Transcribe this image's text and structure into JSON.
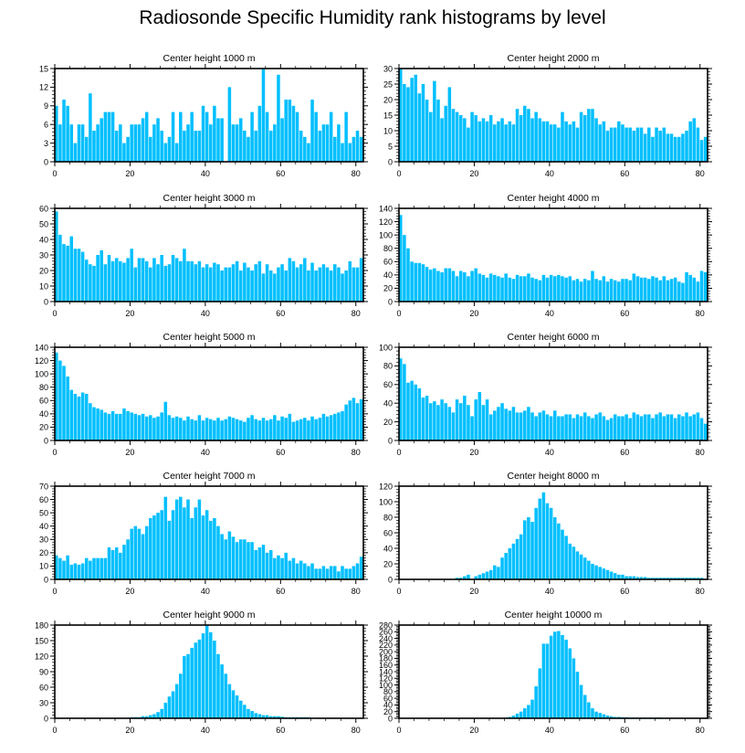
{
  "figure": {
    "title": "Radiosonde Specific Humidity rank histograms by level",
    "bar_color": "#00bfff"
  },
  "chart_data": [
    {
      "type": "bar",
      "title": "Center height 1000 m",
      "xlim": [
        0,
        82
      ],
      "ylim": [
        0,
        15
      ],
      "xticks": [
        0,
        20,
        40,
        60,
        80
      ],
      "yticks": [
        0,
        3,
        6,
        9,
        12,
        15
      ],
      "values": [
        9,
        6,
        10,
        9,
        6,
        3,
        6,
        6,
        4,
        11,
        5,
        6,
        7,
        8,
        8,
        8,
        5,
        6,
        3,
        4,
        6,
        6,
        6,
        7,
        8,
        4,
        6,
        7,
        5,
        3,
        4,
        8,
        3,
        8,
        5,
        6,
        8,
        5,
        5,
        9,
        8,
        6,
        9,
        7,
        7,
        0,
        12,
        6,
        6,
        7,
        5,
        4,
        8,
        5,
        9,
        15,
        8,
        5,
        6,
        14,
        7,
        10,
        10,
        9,
        8,
        5,
        4,
        3,
        10,
        8,
        5,
        6,
        6,
        8,
        4,
        6,
        3,
        8,
        3,
        4,
        5,
        4
      ]
    },
    {
      "type": "bar",
      "title": "Center height 2000 m",
      "xlim": [
        0,
        82
      ],
      "ylim": [
        0,
        30
      ],
      "xticks": [
        0,
        20,
        40,
        60,
        80
      ],
      "yticks": [
        0,
        5,
        10,
        15,
        20,
        25,
        30
      ],
      "values": [
        30,
        25,
        24,
        27,
        28,
        22,
        25,
        20,
        16,
        26,
        20,
        14,
        18,
        24,
        17,
        16,
        15,
        14,
        11,
        16,
        15,
        13,
        14,
        13,
        15,
        12,
        13,
        14,
        12,
        13,
        12,
        17,
        15,
        18,
        17,
        14,
        16,
        14,
        13,
        13,
        12,
        12,
        11,
        16,
        13,
        12,
        13,
        11,
        16,
        15,
        17,
        17,
        14,
        12,
        13,
        10,
        11,
        11,
        13,
        12,
        11,
        11,
        10,
        11,
        11,
        9,
        11,
        8,
        11,
        10,
        11,
        9,
        9,
        8,
        8,
        9,
        10,
        13,
        14,
        11,
        7,
        8
      ]
    },
    {
      "type": "bar",
      "title": "Center height 3000 m",
      "xlim": [
        0,
        82
      ],
      "ylim": [
        0,
        60
      ],
      "xticks": [
        0,
        20,
        40,
        60,
        80
      ],
      "yticks": [
        0,
        10,
        20,
        30,
        40,
        50,
        60
      ],
      "values": [
        58,
        43,
        37,
        36,
        42,
        34,
        34,
        32,
        27,
        24,
        23,
        30,
        33,
        24,
        30,
        26,
        28,
        26,
        25,
        28,
        34,
        22,
        28,
        28,
        26,
        22,
        28,
        24,
        30,
        23,
        24,
        30,
        28,
        26,
        34,
        26,
        26,
        24,
        26,
        22,
        24,
        22,
        25,
        24,
        20,
        22,
        22,
        24,
        26,
        20,
        25,
        22,
        20,
        24,
        26,
        18,
        24,
        20,
        18,
        22,
        24,
        20,
        28,
        26,
        22,
        24,
        28,
        20,
        25,
        20,
        22,
        24,
        22,
        20,
        24,
        22,
        18,
        20,
        26,
        22,
        22,
        28
      ]
    },
    {
      "type": "bar",
      "title": "Center height 4000 m",
      "xlim": [
        0,
        82
      ],
      "ylim": [
        0,
        140
      ],
      "xticks": [
        0,
        20,
        40,
        60,
        80
      ],
      "yticks": [
        0,
        20,
        40,
        60,
        80,
        100,
        120,
        140
      ],
      "values": [
        130,
        100,
        80,
        60,
        58,
        58,
        56,
        52,
        48,
        50,
        46,
        44,
        50,
        50,
        46,
        38,
        46,
        44,
        38,
        46,
        50,
        42,
        40,
        36,
        42,
        40,
        38,
        36,
        42,
        36,
        34,
        40,
        38,
        38,
        42,
        36,
        34,
        32,
        40,
        36,
        40,
        38,
        40,
        38,
        36,
        38,
        32,
        34,
        30,
        34,
        32,
        46,
        34,
        32,
        38,
        30,
        34,
        32,
        30,
        34,
        34,
        32,
        42,
        38,
        36,
        36,
        34,
        38,
        36,
        32,
        38,
        32,
        34,
        36,
        30,
        28,
        44,
        40,
        36,
        30,
        46,
        44
      ]
    },
    {
      "type": "bar",
      "title": "Center height 5000 m",
      "xlim": [
        0,
        82
      ],
      "ylim": [
        0,
        140
      ],
      "xticks": [
        0,
        20,
        40,
        60,
        80
      ],
      "yticks": [
        0,
        20,
        40,
        60,
        80,
        100,
        120,
        140
      ],
      "values": [
        132,
        120,
        112,
        96,
        76,
        70,
        66,
        72,
        70,
        56,
        50,
        48,
        46,
        42,
        40,
        44,
        40,
        40,
        48,
        44,
        42,
        40,
        38,
        40,
        36,
        38,
        34,
        36,
        42,
        58,
        38,
        34,
        36,
        34,
        30,
        36,
        32,
        30,
        38,
        30,
        34,
        32,
        30,
        34,
        30,
        32,
        36,
        34,
        32,
        30,
        28,
        34,
        38,
        32,
        30,
        34,
        30,
        32,
        38,
        30,
        36,
        34,
        40,
        28,
        30,
        32,
        34,
        30,
        36,
        32,
        34,
        40,
        36,
        38,
        40,
        42,
        44,
        54,
        60,
        64,
        56,
        62
      ]
    },
    {
      "type": "bar",
      "title": "Center height 6000 m",
      "xlim": [
        0,
        82
      ],
      "ylim": [
        0,
        100
      ],
      "xticks": [
        0,
        20,
        40,
        60,
        80
      ],
      "yticks": [
        0,
        20,
        40,
        60,
        80,
        100
      ],
      "values": [
        88,
        82,
        62,
        64,
        60,
        56,
        46,
        48,
        40,
        42,
        38,
        44,
        40,
        36,
        30,
        44,
        40,
        48,
        38,
        26,
        44,
        52,
        38,
        44,
        28,
        32,
        36,
        40,
        34,
        32,
        36,
        30,
        30,
        32,
        36,
        30,
        26,
        30,
        32,
        28,
        26,
        32,
        26,
        26,
        28,
        28,
        24,
        28,
        26,
        30,
        26,
        24,
        28,
        30,
        26,
        22,
        24,
        28,
        26,
        26,
        28,
        24,
        30,
        28,
        26,
        28,
        28,
        24,
        28,
        30,
        26,
        28,
        28,
        24,
        28,
        26,
        30,
        26,
        28,
        30,
        24,
        18
      ]
    },
    {
      "type": "bar",
      "title": "Center height 7000 m",
      "xlim": [
        0,
        82
      ],
      "ylim": [
        0,
        70
      ],
      "xticks": [
        0,
        20,
        40,
        60,
        80
      ],
      "yticks": [
        0,
        10,
        20,
        30,
        40,
        50,
        60,
        70
      ],
      "values": [
        18,
        16,
        14,
        18,
        11,
        12,
        11,
        12,
        16,
        14,
        16,
        16,
        16,
        16,
        24,
        22,
        24,
        20,
        26,
        30,
        38,
        40,
        38,
        34,
        40,
        46,
        48,
        50,
        52,
        62,
        44,
        52,
        60,
        62,
        54,
        60,
        46,
        54,
        60,
        48,
        52,
        44,
        46,
        40,
        34,
        30,
        36,
        32,
        28,
        30,
        30,
        28,
        28,
        22,
        24,
        26,
        20,
        22,
        16,
        18,
        16,
        20,
        14,
        16,
        12,
        14,
        12,
        10,
        12,
        8,
        8,
        10,
        8,
        10,
        10,
        6,
        10,
        8,
        8,
        10,
        12,
        17
      ]
    },
    {
      "type": "bar",
      "title": "Center height 8000 m",
      "xlim": [
        0,
        82
      ],
      "ylim": [
        0,
        120
      ],
      "xticks": [
        0,
        20,
        40,
        60,
        80
      ],
      "yticks": [
        0,
        20,
        40,
        60,
        80,
        100,
        120
      ],
      "values": [
        0,
        0,
        0,
        0,
        0,
        0,
        0,
        0,
        0,
        0,
        0,
        0,
        0,
        0,
        0,
        2,
        2,
        4,
        6,
        0,
        4,
        6,
        8,
        10,
        12,
        18,
        16,
        28,
        34,
        40,
        46,
        52,
        58,
        76,
        80,
        74,
        92,
        104,
        112,
        98,
        92,
        80,
        72,
        64,
        56,
        46,
        42,
        36,
        32,
        28,
        24,
        20,
        18,
        16,
        14,
        12,
        10,
        8,
        6,
        6,
        4,
        4,
        4,
        3,
        3,
        3,
        2,
        2,
        2,
        2,
        2,
        2,
        2,
        2,
        2,
        2,
        2,
        2,
        2,
        2,
        2,
        0
      ]
    },
    {
      "type": "bar",
      "title": "Center height 9000 m",
      "xlim": [
        0,
        82
      ],
      "ylim": [
        0,
        180
      ],
      "xticks": [
        0,
        20,
        40,
        60,
        80
      ],
      "yticks": [
        0,
        30,
        60,
        90,
        120,
        150,
        180
      ],
      "values": [
        0,
        0,
        0,
        0,
        0,
        0,
        0,
        0,
        0,
        0,
        0,
        0,
        0,
        0,
        0,
        0,
        0,
        0,
        0,
        0,
        2,
        2,
        2,
        4,
        4,
        6,
        8,
        12,
        18,
        30,
        42,
        52,
        66,
        86,
        120,
        124,
        136,
        146,
        152,
        164,
        180,
        166,
        150,
        124,
        104,
        86,
        66,
        54,
        44,
        34,
        26,
        18,
        14,
        10,
        8,
        6,
        6,
        4,
        4,
        4,
        3,
        2,
        2,
        2,
        2,
        2,
        2,
        2,
        1,
        1,
        1,
        1,
        1,
        1,
        1,
        0,
        0,
        0,
        0,
        0,
        0,
        0
      ]
    },
    {
      "type": "bar",
      "title": "Center height 10000 m",
      "xlim": [
        0,
        82
      ],
      "ylim": [
        0,
        280
      ],
      "xticks": [
        0,
        20,
        40,
        60,
        80
      ],
      "yticks": [
        0,
        20,
        40,
        60,
        80,
        100,
        120,
        140,
        160,
        180,
        200,
        220,
        240,
        260,
        280
      ],
      "values": [
        0,
        0,
        0,
        0,
        0,
        0,
        0,
        0,
        0,
        0,
        0,
        0,
        0,
        0,
        0,
        0,
        0,
        0,
        0,
        0,
        0,
        0,
        0,
        0,
        0,
        0,
        0,
        0,
        2,
        4,
        8,
        14,
        20,
        30,
        40,
        56,
        96,
        150,
        224,
        224,
        248,
        260,
        262,
        250,
        236,
        210,
        180,
        140,
        100,
        70,
        48,
        30,
        20,
        16,
        12,
        8,
        6,
        4,
        4,
        3,
        3,
        2,
        2,
        2,
        2,
        2,
        2,
        2,
        2,
        2,
        1,
        1,
        1,
        1,
        1,
        1,
        0,
        0,
        0,
        0,
        0,
        0
      ]
    }
  ]
}
